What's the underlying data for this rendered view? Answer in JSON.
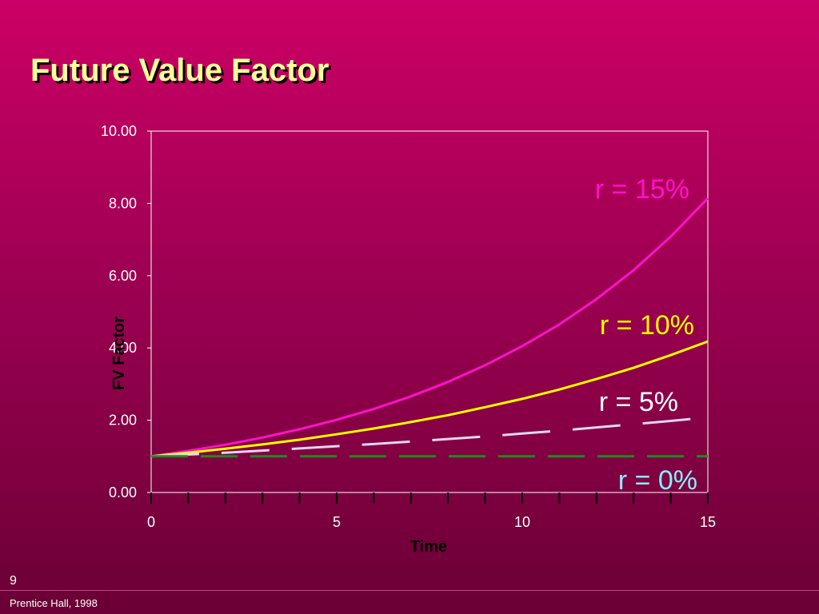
{
  "slide": {
    "title": "Future Value Factor",
    "page_number": "9",
    "credit": "Prentice Hall, 1998"
  },
  "chart_data": {
    "type": "line",
    "title": "",
    "xlabel": "Time",
    "ylabel": "FV Factor",
    "xlim": [
      0,
      15
    ],
    "ylim": [
      0,
      10
    ],
    "x_ticks": [
      0,
      5,
      10,
      15
    ],
    "y_ticks": [
      "0.00",
      "2.00",
      "4.00",
      "6.00",
      "8.00",
      "10.00"
    ],
    "grid": false,
    "series": [
      {
        "name": "r = 15%",
        "rate": 0.15,
        "color": "#ff11cc",
        "style": "solid",
        "x": [
          0,
          1,
          2,
          3,
          4,
          5,
          6,
          7,
          8,
          9,
          10,
          11,
          12,
          13,
          14,
          15
        ],
        "values": [
          1.0,
          1.15,
          1.32,
          1.52,
          1.75,
          2.01,
          2.31,
          2.66,
          3.06,
          3.52,
          4.05,
          4.65,
          5.35,
          6.15,
          7.08,
          8.14
        ]
      },
      {
        "name": "r = 10%",
        "rate": 0.1,
        "color": "#ffff00",
        "style": "solid",
        "x": [
          0,
          1,
          2,
          3,
          4,
          5,
          6,
          7,
          8,
          9,
          10,
          11,
          12,
          13,
          14,
          15
        ],
        "values": [
          1.0,
          1.1,
          1.21,
          1.33,
          1.46,
          1.61,
          1.77,
          1.95,
          2.14,
          2.36,
          2.59,
          2.85,
          3.14,
          3.45,
          3.8,
          4.18
        ]
      },
      {
        "name": "r = 5%",
        "rate": 0.05,
        "color": "#e0d8f0",
        "style": "dashed",
        "x": [
          0,
          1,
          2,
          3,
          4,
          5,
          6,
          7,
          8,
          9,
          10,
          11,
          12,
          13,
          14,
          15
        ],
        "values": [
          1.0,
          1.05,
          1.1,
          1.16,
          1.22,
          1.28,
          1.34,
          1.41,
          1.48,
          1.55,
          1.63,
          1.71,
          1.8,
          1.89,
          1.98,
          2.08
        ]
      },
      {
        "name": "r = 0%",
        "rate": 0.0,
        "color": "#228822",
        "style": "dashed",
        "x": [
          0,
          1,
          2,
          3,
          4,
          5,
          6,
          7,
          8,
          9,
          10,
          11,
          12,
          13,
          14,
          15
        ],
        "values": [
          1,
          1,
          1,
          1,
          1,
          1,
          1,
          1,
          1,
          1,
          1,
          1,
          1,
          1,
          1,
          1
        ]
      }
    ]
  },
  "curve_labels": [
    {
      "text": "r = 15%",
      "color": "#ff11cc"
    },
    {
      "text": "r = 10%",
      "color": "#ffff00"
    },
    {
      "text": "r = 5%",
      "color": "#ffffff"
    },
    {
      "text": "r = 0%",
      "color": "#88eeff"
    }
  ]
}
